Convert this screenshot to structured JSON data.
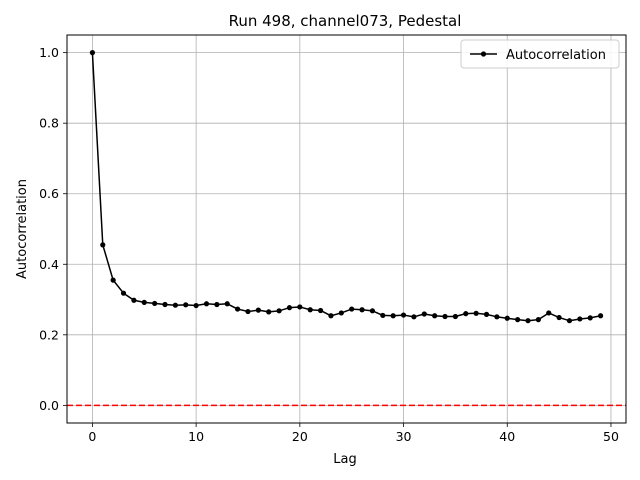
{
  "chart_data": {
    "type": "line",
    "title": "Run 498, channel073, Pedestal",
    "xlabel": "Lag",
    "ylabel": "Autocorrelation",
    "xlim": [
      -2.45,
      51.45
    ],
    "ylim": [
      -0.05,
      1.05
    ],
    "xticks": [
      0,
      10,
      20,
      30,
      40,
      50
    ],
    "yticks": [
      0.0,
      0.2,
      0.4,
      0.6,
      0.8,
      1.0
    ],
    "grid": true,
    "legend_position": "top-right",
    "series": [
      {
        "name": "Autocorrelation",
        "color": "#000000",
        "marker": "circle",
        "x": [
          0,
          1,
          2,
          3,
          4,
          5,
          6,
          7,
          8,
          9,
          10,
          11,
          12,
          13,
          14,
          15,
          16,
          17,
          18,
          19,
          20,
          21,
          22,
          23,
          24,
          25,
          26,
          27,
          28,
          29,
          30,
          31,
          32,
          33,
          34,
          35,
          36,
          37,
          38,
          39,
          40,
          41,
          42,
          43,
          44,
          45,
          46,
          47,
          48,
          49
        ],
        "values": [
          1.0,
          0.455,
          0.355,
          0.318,
          0.298,
          0.292,
          0.289,
          0.286,
          0.284,
          0.285,
          0.283,
          0.288,
          0.286,
          0.288,
          0.273,
          0.266,
          0.27,
          0.265,
          0.268,
          0.277,
          0.279,
          0.271,
          0.269,
          0.254,
          0.262,
          0.273,
          0.271,
          0.268,
          0.255,
          0.254,
          0.256,
          0.251,
          0.259,
          0.254,
          0.252,
          0.252,
          0.26,
          0.261,
          0.258,
          0.251,
          0.247,
          0.243,
          0.24,
          0.243,
          0.262,
          0.249,
          0.24,
          0.245,
          0.248,
          0.254
        ]
      }
    ],
    "reference_line": {
      "y": 0.0,
      "color": "#ff0000",
      "style": "dashed"
    }
  }
}
